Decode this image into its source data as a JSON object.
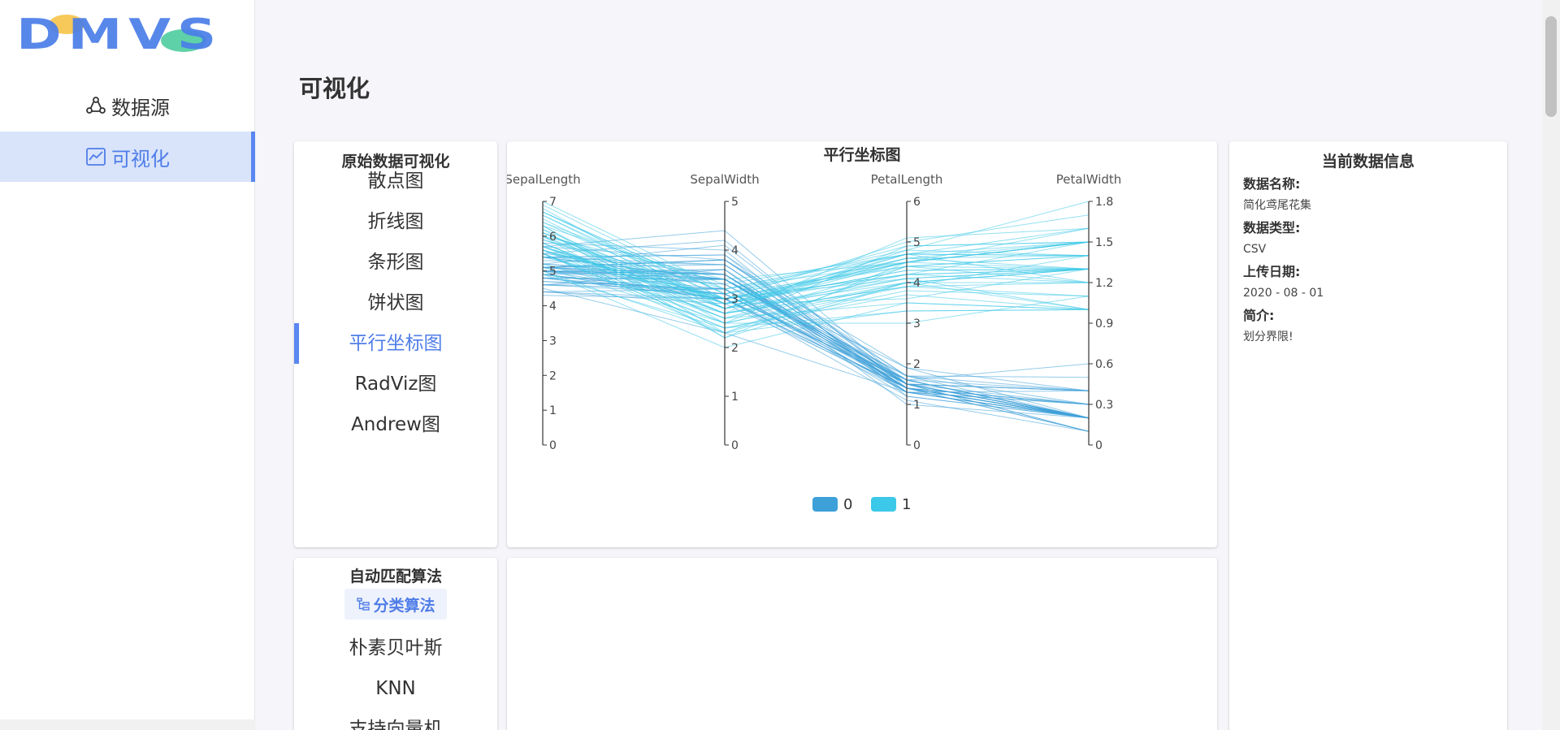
{
  "app": {
    "logo_text": "DMVS"
  },
  "sidebar": {
    "items": [
      {
        "label": "数据源",
        "icon": "cloud-share-icon"
      },
      {
        "label": "可视化",
        "icon": "line-chart-icon"
      }
    ]
  },
  "page": {
    "title": "可视化"
  },
  "raw_visual_menu": {
    "heading": "原始数据可视化",
    "items": [
      "散点图",
      "折线图",
      "条形图",
      "饼状图",
      "平行坐标图",
      "RadViz图",
      "Andrew图"
    ],
    "active": "平行坐标图"
  },
  "chart": {
    "title": "平行坐标图"
  },
  "chart_data": {
    "type": "parallel",
    "title": "平行坐标图",
    "dimensions": [
      {
        "name": "SepalLength",
        "range": [
          0,
          7
        ],
        "ticks": [
          0,
          1,
          2,
          3,
          4,
          5,
          6,
          7
        ]
      },
      {
        "name": "SepalWidth",
        "range": [
          0,
          5
        ],
        "ticks": [
          0,
          1,
          2,
          3,
          4,
          5
        ]
      },
      {
        "name": "PetalLength",
        "range": [
          0,
          6
        ],
        "ticks": [
          0,
          1,
          2,
          3,
          4,
          5,
          6
        ]
      },
      {
        "name": "PetalWidth",
        "range": [
          0,
          1.8
        ],
        "ticks": [
          0,
          0.3,
          0.6,
          0.9,
          1.2,
          1.5,
          1.8
        ]
      }
    ],
    "legend": [
      "0",
      "1"
    ],
    "legend_position": "bottom-center",
    "colors": {
      "0": "#3ea0d9",
      "1": "#3cc8e8"
    },
    "series": [
      {
        "name": "0",
        "rows": [
          [
            5.1,
            3.5,
            1.4,
            0.2
          ],
          [
            4.9,
            3.0,
            1.4,
            0.2
          ],
          [
            4.7,
            3.2,
            1.3,
            0.2
          ],
          [
            4.6,
            3.1,
            1.5,
            0.2
          ],
          [
            5.0,
            3.6,
            1.4,
            0.2
          ],
          [
            5.4,
            3.9,
            1.7,
            0.4
          ],
          [
            4.6,
            3.4,
            1.4,
            0.3
          ],
          [
            5.0,
            3.4,
            1.5,
            0.2
          ],
          [
            4.4,
            2.9,
            1.4,
            0.2
          ],
          [
            4.9,
            3.1,
            1.5,
            0.1
          ],
          [
            5.4,
            3.7,
            1.5,
            0.2
          ],
          [
            4.8,
            3.4,
            1.6,
            0.2
          ],
          [
            4.8,
            3.0,
            1.4,
            0.1
          ],
          [
            4.3,
            3.0,
            1.1,
            0.1
          ],
          [
            5.8,
            4.0,
            1.2,
            0.2
          ],
          [
            5.7,
            4.4,
            1.5,
            0.4
          ],
          [
            5.4,
            3.9,
            1.3,
            0.4
          ],
          [
            5.1,
            3.5,
            1.4,
            0.3
          ],
          [
            5.7,
            3.8,
            1.7,
            0.3
          ],
          [
            5.1,
            3.8,
            1.5,
            0.3
          ],
          [
            5.4,
            3.4,
            1.7,
            0.2
          ],
          [
            5.1,
            3.7,
            1.5,
            0.4
          ],
          [
            4.6,
            3.6,
            1.0,
            0.2
          ],
          [
            5.1,
            3.3,
            1.7,
            0.5
          ],
          [
            4.8,
            3.4,
            1.9,
            0.2
          ],
          [
            5.0,
            3.0,
            1.6,
            0.2
          ],
          [
            5.0,
            3.4,
            1.6,
            0.4
          ],
          [
            5.2,
            3.5,
            1.5,
            0.2
          ],
          [
            5.2,
            3.4,
            1.4,
            0.2
          ],
          [
            4.7,
            3.2,
            1.6,
            0.2
          ],
          [
            4.8,
            3.1,
            1.6,
            0.2
          ],
          [
            5.4,
            3.4,
            1.5,
            0.4
          ],
          [
            5.2,
            4.1,
            1.5,
            0.1
          ],
          [
            5.5,
            4.2,
            1.4,
            0.2
          ],
          [
            4.9,
            3.1,
            1.5,
            0.2
          ],
          [
            5.0,
            3.2,
            1.2,
            0.2
          ],
          [
            5.5,
            3.5,
            1.3,
            0.2
          ],
          [
            4.9,
            3.6,
            1.4,
            0.1
          ],
          [
            4.4,
            3.0,
            1.3,
            0.2
          ],
          [
            5.1,
            3.4,
            1.5,
            0.2
          ],
          [
            5.0,
            3.5,
            1.3,
            0.3
          ],
          [
            4.5,
            2.3,
            1.3,
            0.3
          ],
          [
            4.4,
            3.2,
            1.3,
            0.2
          ],
          [
            5.0,
            3.5,
            1.6,
            0.6
          ],
          [
            5.1,
            3.8,
            1.9,
            0.4
          ],
          [
            4.8,
            3.0,
            1.4,
            0.3
          ],
          [
            5.1,
            3.8,
            1.6,
            0.2
          ],
          [
            4.6,
            3.2,
            1.4,
            0.2
          ],
          [
            5.3,
            3.7,
            1.5,
            0.2
          ],
          [
            5.0,
            3.3,
            1.4,
            0.2
          ]
        ]
      },
      {
        "name": "1",
        "rows": [
          [
            7.0,
            3.2,
            4.7,
            1.4
          ],
          [
            6.4,
            3.2,
            4.5,
            1.5
          ],
          [
            6.9,
            3.1,
            4.9,
            1.5
          ],
          [
            5.5,
            2.3,
            4.0,
            1.3
          ],
          [
            6.5,
            2.8,
            4.6,
            1.5
          ],
          [
            5.7,
            2.8,
            4.5,
            1.3
          ],
          [
            6.3,
            3.3,
            4.7,
            1.6
          ],
          [
            4.9,
            2.4,
            3.3,
            1.0
          ],
          [
            6.6,
            2.9,
            4.6,
            1.3
          ],
          [
            5.2,
            2.7,
            3.9,
            1.4
          ],
          [
            5.0,
            2.0,
            3.5,
            1.0
          ],
          [
            5.9,
            3.0,
            4.2,
            1.5
          ],
          [
            6.0,
            2.2,
            4.0,
            1.0
          ],
          [
            6.1,
            2.9,
            4.7,
            1.4
          ],
          [
            5.6,
            2.9,
            3.6,
            1.3
          ],
          [
            6.7,
            3.1,
            4.4,
            1.4
          ],
          [
            5.6,
            3.0,
            4.5,
            1.5
          ],
          [
            5.8,
            2.7,
            4.1,
            1.0
          ],
          [
            6.2,
            2.2,
            4.5,
            1.5
          ],
          [
            5.6,
            2.5,
            3.9,
            1.1
          ],
          [
            5.9,
            3.2,
            4.8,
            1.8
          ],
          [
            6.1,
            2.8,
            4.0,
            1.3
          ],
          [
            6.3,
            2.5,
            4.9,
            1.5
          ],
          [
            6.1,
            2.8,
            4.7,
            1.2
          ],
          [
            6.4,
            2.9,
            4.3,
            1.3
          ],
          [
            6.6,
            3.0,
            4.4,
            1.4
          ],
          [
            6.8,
            2.8,
            4.8,
            1.4
          ],
          [
            6.7,
            3.0,
            5.0,
            1.7
          ],
          [
            6.0,
            2.9,
            4.5,
            1.5
          ],
          [
            5.7,
            2.6,
            3.5,
            1.0
          ],
          [
            5.5,
            2.4,
            3.8,
            1.1
          ],
          [
            5.5,
            2.4,
            3.7,
            1.0
          ],
          [
            5.8,
            2.7,
            3.9,
            1.2
          ],
          [
            6.0,
            2.7,
            5.1,
            1.6
          ],
          [
            5.4,
            3.0,
            4.5,
            1.5
          ],
          [
            6.0,
            3.4,
            4.5,
            1.6
          ],
          [
            6.7,
            3.1,
            4.7,
            1.5
          ],
          [
            6.3,
            2.3,
            4.4,
            1.3
          ],
          [
            5.6,
            3.0,
            4.1,
            1.3
          ],
          [
            5.5,
            2.5,
            4.0,
            1.3
          ],
          [
            5.5,
            2.6,
            4.4,
            1.2
          ],
          [
            6.1,
            3.0,
            4.6,
            1.4
          ],
          [
            5.8,
            2.6,
            4.0,
            1.2
          ],
          [
            5.0,
            2.3,
            3.3,
            1.0
          ],
          [
            5.6,
            2.7,
            4.2,
            1.3
          ],
          [
            5.7,
            3.0,
            4.2,
            1.2
          ],
          [
            5.7,
            2.9,
            4.2,
            1.3
          ],
          [
            6.2,
            2.9,
            4.3,
            1.3
          ],
          [
            5.1,
            2.5,
            3.0,
            1.1
          ],
          [
            5.7,
            2.8,
            4.1,
            1.3
          ]
        ]
      }
    ]
  },
  "data_info": {
    "heading": "当前数据信息",
    "fields": [
      {
        "label": "数据名称:",
        "value": "简化鸢尾花集"
      },
      {
        "label": "数据类型:",
        "value": "CSV"
      },
      {
        "label": "上传日期:",
        "value": "2020 - 08 - 01"
      },
      {
        "label": "简介:",
        "value": "划分界限!"
      }
    ]
  },
  "algorithm_menu": {
    "heading": "自动匹配算法",
    "category": "分类算法",
    "category_icon": "tree-list-icon",
    "items": [
      "朴素贝叶斯",
      "KNN",
      "支持向量机"
    ]
  }
}
